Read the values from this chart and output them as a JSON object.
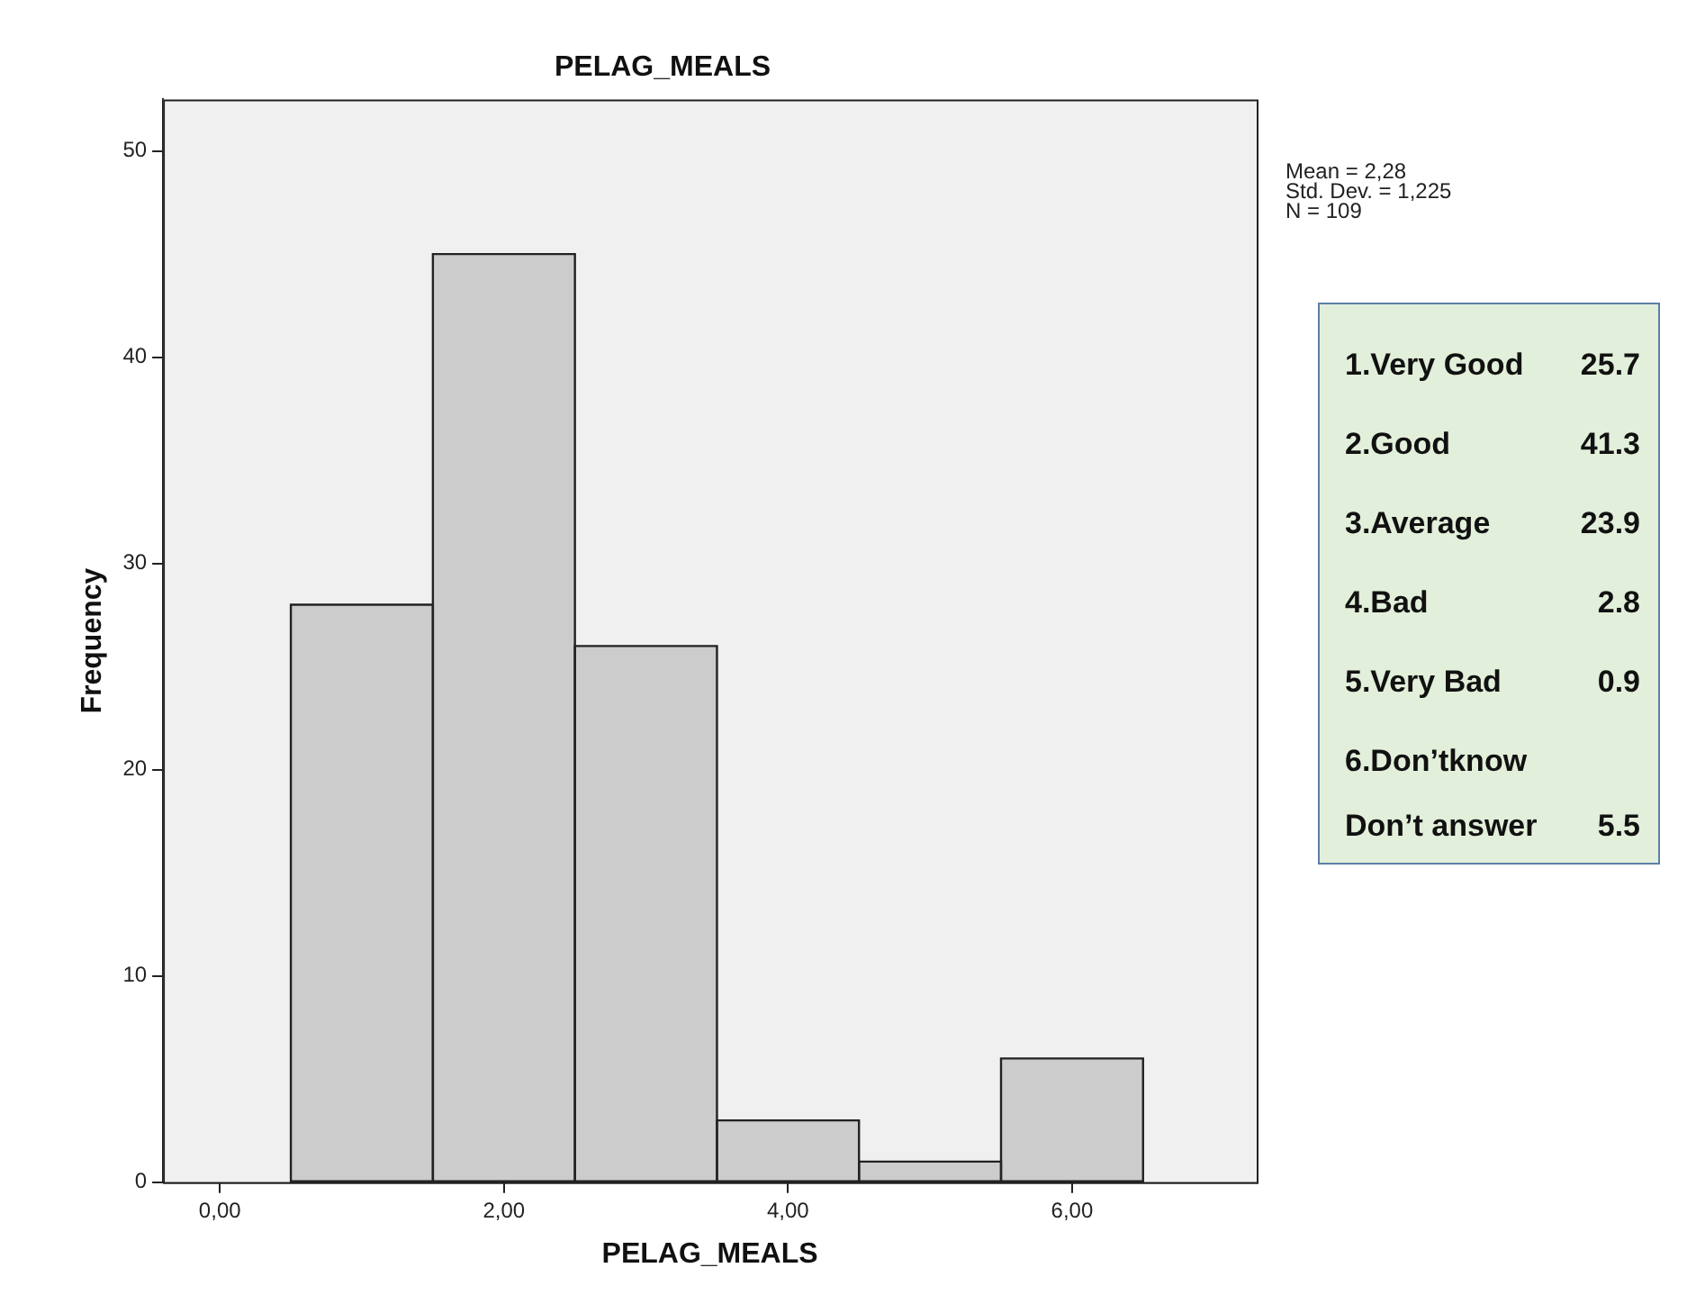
{
  "chart_data": {
    "type": "histogram",
    "title": "PELAG_MEALS",
    "xlabel": "PELAG_MEALS",
    "ylabel": "Frequency",
    "bins": [
      0.5,
      1.5,
      2.5,
      3.5,
      4.5,
      5.5,
      6.5
    ],
    "values": [
      28,
      45,
      26,
      3,
      1,
      6
    ],
    "color": "#cccccc",
    "xlim": [
      -0.4,
      7.3
    ],
    "xticks": [
      {
        "value": 0,
        "label": "0,00"
      },
      {
        "value": 2,
        "label": "2,00"
      },
      {
        "value": 4,
        "label": "4,00"
      },
      {
        "value": 6,
        "label": "6,00"
      }
    ],
    "ylim": [
      0,
      52.5
    ],
    "yticks": [
      0,
      10,
      20,
      30,
      40,
      50
    ],
    "annotations": [
      "Mean = 2,28",
      "Std. Dev. = 1,225",
      "N = 109",
      "1.Very Good 25.7",
      "2.Good 41.3",
      "3.Average 23.9",
      "4.Bad 2.8",
      "5.Very Bad 0.9",
      "6.Don’tknow",
      "Don’t answer 5.5"
    ]
  }
}
